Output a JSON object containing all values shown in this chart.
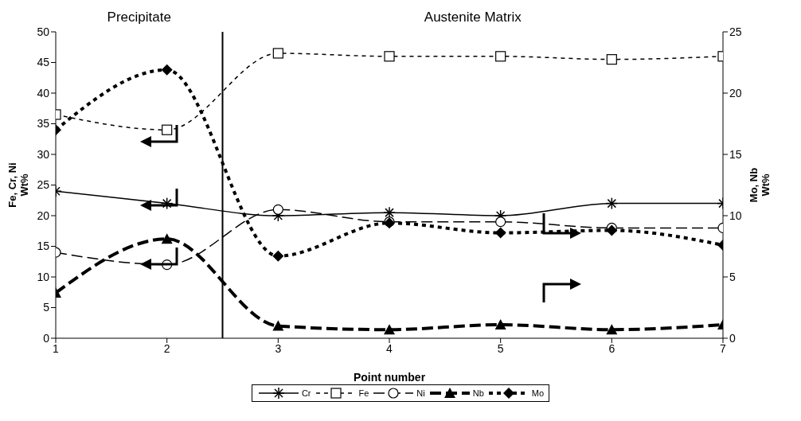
{
  "chart_data": {
    "type": "line",
    "xlabel": "Point number",
    "ylabel": "Fe, Cr, Ni Wt%",
    "y2label": "Mo, Nb Wt%",
    "annotations": [
      "Precipitate",
      "Austenite Matrix"
    ],
    "x": [
      1,
      2,
      3,
      4,
      5,
      6,
      7
    ],
    "series": [
      {
        "name": "Cr",
        "color": "#000000",
        "values": [
          24,
          22,
          20,
          20.5,
          20,
          22,
          22
        ],
        "marker": "cross",
        "line_style": "solid"
      },
      {
        "name": "Fe",
        "color": "#000000",
        "values": [
          36.5,
          34,
          46.5,
          46,
          46,
          45.5,
          46
        ],
        "marker": "square",
        "line_style": "dotted"
      },
      {
        "name": "Ni",
        "color": "#000000",
        "values": [
          14,
          12,
          21,
          19,
          19,
          18,
          18
        ],
        "marker": "circle",
        "line_style": "dashed"
      },
      {
        "name": "Nb",
        "color": "#000000",
        "values": [
          3.7,
          8.1,
          1,
          0.7,
          1.1,
          0.7,
          1.1
        ],
        "marker": "triangle",
        "line_style": "dashed",
        "axis": "y2"
      },
      {
        "name": "Mo",
        "color": "#000000",
        "values": [
          17,
          21.9,
          6.7,
          9.4,
          8.6,
          8.8,
          7.6
        ],
        "marker": "diamond",
        "line_style": "dotted",
        "axis": "y2"
      }
    ],
    "xlim": [
      1,
      7
    ],
    "xticks": [
      1,
      2,
      3,
      4,
      5,
      6,
      7
    ],
    "ylim": [
      0,
      50
    ],
    "yticks": [
      0,
      5,
      10,
      15,
      20,
      25,
      30,
      35,
      40,
      45,
      50
    ],
    "y2lim": [
      0,
      25
    ],
    "y2ticks": [
      0,
      5,
      10,
      15,
      20,
      25
    ],
    "ref_lines": [
      {
        "axis": "x",
        "value": 2.5,
        "color": "#000000"
      }
    ],
    "legend": "bottom"
  }
}
